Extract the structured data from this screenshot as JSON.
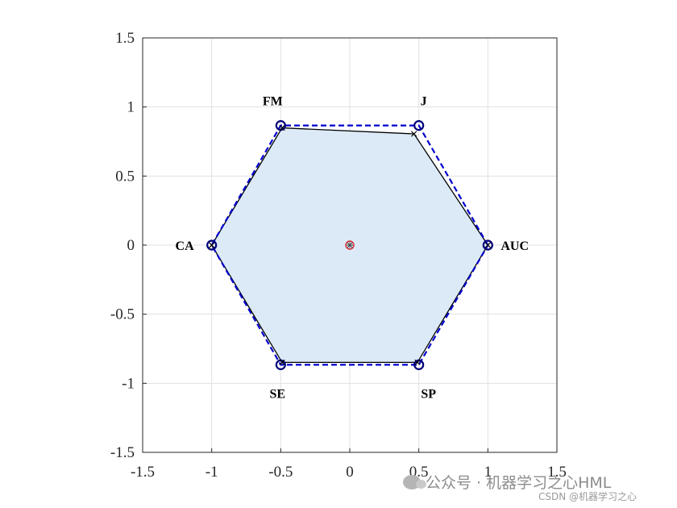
{
  "chart_data": {
    "type": "radar",
    "xlim": [
      -1.5,
      1.5
    ],
    "ylim": [
      -1.5,
      1.5
    ],
    "grid": true,
    "xticks": [
      "-1.5",
      "-1",
      "-0.5",
      "0",
      "0.5",
      "1",
      "1.5"
    ],
    "yticks": [
      "1.5",
      "1",
      "0.5",
      "0",
      "-0.5",
      "-1",
      "-1.5"
    ],
    "xtick_values": [
      -1.5,
      -1,
      -0.5,
      0,
      0.5,
      1,
      1.5
    ],
    "ytick_values": [
      1.5,
      1,
      0.5,
      0,
      -0.5,
      -1,
      -1.5
    ],
    "axes": [
      {
        "label": "AUC",
        "angle_deg": 0
      },
      {
        "label": "J",
        "angle_deg": 60
      },
      {
        "label": "FM",
        "angle_deg": 120
      },
      {
        "label": "CA",
        "angle_deg": 180
      },
      {
        "label": "SE",
        "angle_deg": 240
      },
      {
        "label": "SP",
        "angle_deg": 300
      }
    ],
    "series": [
      {
        "style": "filled",
        "values": [
          1.0,
          0.93,
          0.98,
          1.0,
          0.98,
          0.98
        ]
      },
      {
        "style": "reference",
        "values": [
          1.0,
          1.0,
          1.0,
          1.0,
          1.0,
          1.0
        ]
      }
    ],
    "colors": {
      "fill": "#dceaf8",
      "outline": "#000000",
      "reference": "#0000cc",
      "spoke": "#333333",
      "center": "#d62728"
    }
  },
  "watermark": {
    "main": "公众号 · 机器学习之心HML",
    "sub": "CSDN @机器学习之心"
  }
}
